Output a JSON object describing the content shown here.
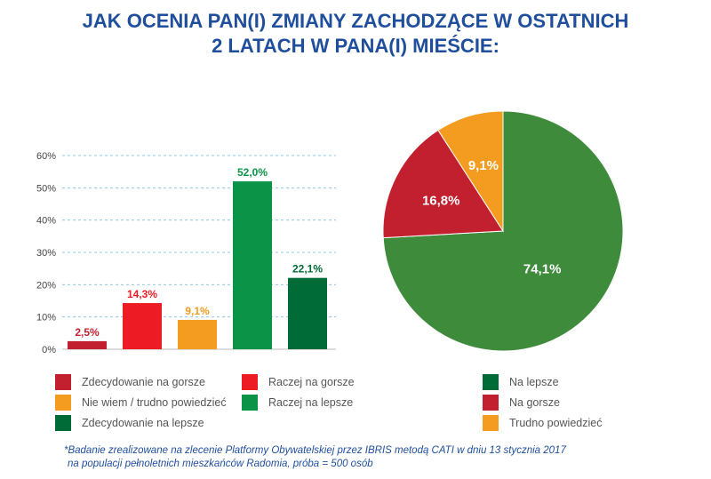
{
  "title": {
    "line1": "JAK OCENIA PAN(I) ZMIANY ZACHODZĄCE W OSTATNICH",
    "line2": "2 LATACH W PANA(I) MIEŚCIE:"
  },
  "chart_data": [
    {
      "type": "bar",
      "categories": [
        "Zdecydowanie na gorsze",
        "Raczej na gorsze",
        "Nie wiem / trudno powiedzieć",
        "Raczej na lepsze",
        "Zdecydowanie na lepsze"
      ],
      "values": [
        2.5,
        14.3,
        9.1,
        52.0,
        22.1
      ],
      "value_labels": [
        "2,5%",
        "14,3%",
        "9,1%",
        "52,0%",
        "22,1%"
      ],
      "colors": [
        "#c2202f",
        "#ed1c24",
        "#f39c1f",
        "#0b9447",
        "#006b36"
      ],
      "label_colors": [
        "#c2202f",
        "#ed1c24",
        "#f39c1f",
        "#0b9447",
        "#006b36"
      ],
      "ylim": [
        0,
        60
      ],
      "yticks": [
        0,
        10,
        20,
        30,
        40,
        50,
        60
      ],
      "ytick_labels": [
        "0%",
        "10%",
        "20%",
        "30%",
        "40%",
        "50%",
        "60%"
      ],
      "grid": true
    },
    {
      "type": "pie",
      "categories": [
        "Na lepsze",
        "Na gorsze",
        "Trudno powiedzieć"
      ],
      "values": [
        74.1,
        16.8,
        9.1
      ],
      "value_labels": [
        "74,1%",
        "16,8%",
        "9,1%"
      ],
      "colors": [
        "#3f8b3c",
        "#c2202f",
        "#f39c1f"
      ]
    }
  ],
  "legend_left": [
    {
      "label": "Zdecydowanie na gorsze",
      "color": "#c2202f"
    },
    {
      "label": "Raczej na gorsze",
      "color": "#ed1c24"
    },
    {
      "label": "Nie wiem / trudno powiedzieć",
      "color": "#f39c1f"
    },
    {
      "label": "Raczej na lepsze",
      "color": "#0b9447"
    },
    {
      "label": "Zdecydowanie na lepsze",
      "color": "#006b36"
    }
  ],
  "legend_right": [
    {
      "label": "Na lepsze",
      "color": "#006b36"
    },
    {
      "label": "Na gorsze",
      "color": "#c2202f"
    },
    {
      "label": "Trudno powiedzieć",
      "color": "#f39c1f"
    }
  ],
  "footnote": {
    "line1": "*Badanie zrealizowane na zlecenie Platformy Obywatelskiej przez IBRIS metodą CATI w dniu 13 stycznia 2017",
    "line2": "na populacji pełnoletnich mieszkańców Radomia, próba = 500 osób"
  }
}
